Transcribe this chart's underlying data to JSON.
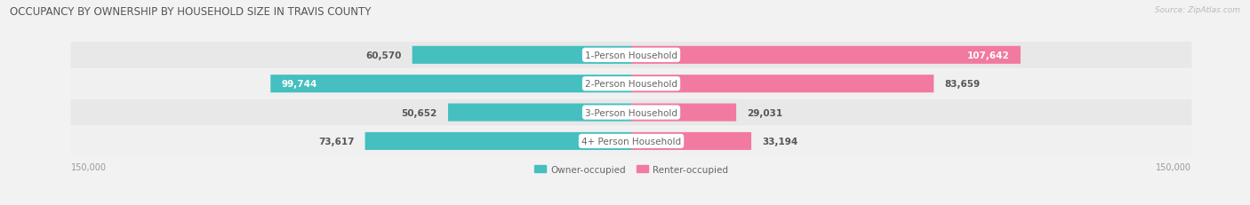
{
  "title": "OCCUPANCY BY OWNERSHIP BY HOUSEHOLD SIZE IN TRAVIS COUNTY",
  "source": "Source: ZipAtlas.com",
  "categories": [
    "1-Person Household",
    "2-Person Household",
    "3-Person Household",
    "4+ Person Household"
  ],
  "owner_values": [
    60570,
    99744,
    50652,
    73617
  ],
  "renter_values": [
    107642,
    83659,
    29031,
    33194
  ],
  "max_val": 150000,
  "owner_color": "#45bfbf",
  "renter_color": "#f279a0",
  "bg_color": "#f2f2f2",
  "row_colors": [
    "#e8e8e8",
    "#f0f0f0",
    "#e8e8e8",
    "#f0f0f0"
  ],
  "title_fontsize": 8.5,
  "label_fontsize": 7.5,
  "tick_fontsize": 7,
  "legend_fontsize": 7.5,
  "source_fontsize": 6.5,
  "owner_label_white_threshold": 85000,
  "renter_label_white_threshold": 90000,
  "renter_label_outside_threshold": 45000
}
